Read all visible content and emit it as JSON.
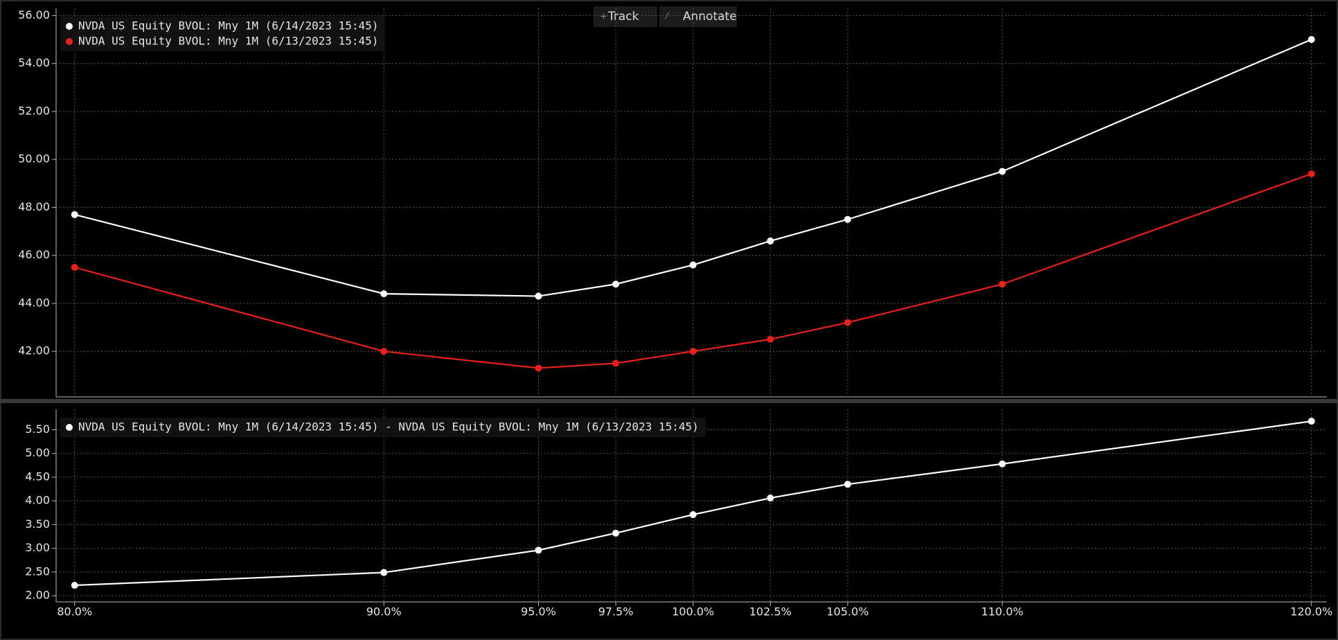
{
  "toolbar": [
    "Track",
    "Annotate"
  ],
  "chart_data": [
    {
      "type": "line",
      "x": [
        80,
        90,
        95,
        97.5,
        100,
        102.5,
        105,
        110,
        120
      ],
      "xlim": [
        79.4,
        120.5
      ],
      "series": [
        {
          "name": "NVDA US Equity BVOL: Mny 1M (6/14/2023 15:45)",
          "color": "#ffffff",
          "values": [
            47.7,
            44.4,
            44.3,
            44.8,
            45.6,
            46.6,
            47.5,
            49.5,
            55.0
          ]
        },
        {
          "name": "NVDA US Equity BVOL: Mny 1M (6/13/2023 15:45)",
          "color": "#e8211c",
          "values": [
            45.5,
            42.0,
            41.3,
            41.5,
            42.0,
            42.5,
            43.2,
            44.8,
            49.4
          ]
        }
      ],
      "ylim": [
        40.1,
        56.3
      ],
      "yticks": [
        {
          "value": 42,
          "label": "42.00"
        },
        {
          "value": 44,
          "label": "44.00"
        },
        {
          "value": 46,
          "label": "46.00"
        },
        {
          "value": 48,
          "label": "48.00"
        },
        {
          "value": 50,
          "label": "50.00"
        },
        {
          "value": 52,
          "label": "52.00"
        },
        {
          "value": 54,
          "label": "54.00"
        },
        {
          "value": 56,
          "label": "56.00"
        }
      ],
      "grid": true
    },
    {
      "type": "line",
      "x": [
        80,
        90,
        95,
        97.5,
        100,
        102.5,
        105,
        110,
        120
      ],
      "xlim": [
        79.4,
        120.5
      ],
      "xticks": [
        {
          "value": 80,
          "label": "80.0%"
        },
        {
          "value": 90,
          "label": "90.0%"
        },
        {
          "value": 95,
          "label": "95.0%"
        },
        {
          "value": 97.5,
          "label": "97.5%"
        },
        {
          "value": 100,
          "label": "100.0%"
        },
        {
          "value": 102.5,
          "label": "102.5%"
        },
        {
          "value": 105,
          "label": "105.0%"
        },
        {
          "value": 110,
          "label": "110.0%"
        },
        {
          "value": 120,
          "label": "120.0%"
        }
      ],
      "series": [
        {
          "name": "NVDA US Equity BVOL: Mny 1M (6/14/2023 15:45) - NVDA US Equity BVOL: Mny 1M (6/13/2023 15:45)",
          "color": "#ffffff",
          "values": [
            2.22,
            2.49,
            2.96,
            3.32,
            3.71,
            4.06,
            4.35,
            4.78,
            5.68
          ]
        }
      ],
      "ylim": [
        1.87,
        5.93
      ],
      "yticks": [
        {
          "value": 2,
          "label": "2.00"
        },
        {
          "value": 2.5,
          "label": "2.50"
        },
        {
          "value": 3,
          "label": "3.00"
        },
        {
          "value": 3.5,
          "label": "3.50"
        },
        {
          "value": 4,
          "label": "4.00"
        },
        {
          "value": 4.5,
          "label": "4.50"
        },
        {
          "value": 5,
          "label": "5.00"
        },
        {
          "value": 5.5,
          "label": "5.50"
        }
      ],
      "grid": true
    }
  ]
}
